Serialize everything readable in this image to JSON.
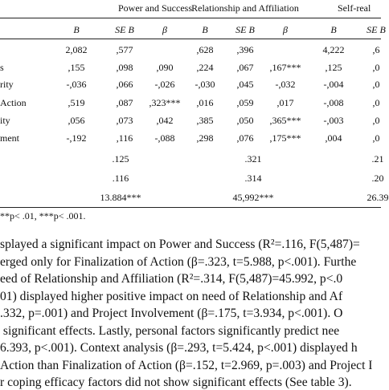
{
  "table": {
    "group_headers": [
      "Power and Success",
      "Relationship and Affiliation",
      "Self-real"
    ],
    "column_headers": [
      "B",
      "SE B",
      "β",
      "B",
      "SE B",
      "β",
      "B",
      "SE B"
    ],
    "rows": [
      [
        null,
        "2,082",
        ",577",
        null,
        ",628",
        ",396",
        null,
        "4,222",
        ",6"
      ],
      [
        "s",
        ",155",
        ",098",
        ",090",
        ",224",
        ",067",
        ",167***",
        ",125",
        ",0"
      ],
      [
        "rity",
        "-,036",
        ",066",
        "-,026",
        "-,030",
        ",045",
        "-,032",
        "-,004",
        ",0"
      ],
      [
        "Action",
        ",519",
        ",087",
        ",323***",
        ",016",
        ",059",
        ",017",
        "-,008",
        ",0"
      ],
      [
        "ity",
        ",056",
        ",073",
        ",042",
        ",385",
        ",050",
        ",365***",
        "-,003",
        ",0"
      ],
      [
        "ment",
        "-,192",
        ",116",
        "-,088",
        ",298",
        ",076",
        ",175***",
        ",004",
        ",0"
      ],
      [
        null,
        null,
        ".125",
        null,
        null,
        ".321",
        null,
        null,
        ".21"
      ],
      [
        null,
        null,
        ".116",
        null,
        null,
        ".314",
        null,
        null,
        ".20"
      ],
      [
        null,
        null,
        "13.884***",
        null,
        null,
        "45,992***",
        null,
        null,
        "26.39"
      ]
    ],
    "footnote": "**p< .01, ***p< .001."
  },
  "paragraph": {
    "lines": [
      "splayed a significant impact on Power and Success (R²=.116, F(5,487)=",
      "erged only for Finalization of Action (β=.323, t=5.988, p<.001). Furthe",
      "eed of Relationship and Affiliation (R²=.314, F(5,487)=45.992, p<.0",
      "01) displayed higher positive impact on need of Relationship and Af",
      ".332, p=.001) and Project Involvement (β=.175, t=3.934, p<.001). O",
      " significant effects. Lastly, personal factors significantly predict nee",
      "6.393, p<.001). Context analysis (β=.293, t=5.424, p<.001) displayed h",
      "Action than Finalization of Action (β=.152, t=2.969, p=.003) and Project I",
      "r coping efficacy factors did not show significant effects (See table 3)."
    ]
  }
}
